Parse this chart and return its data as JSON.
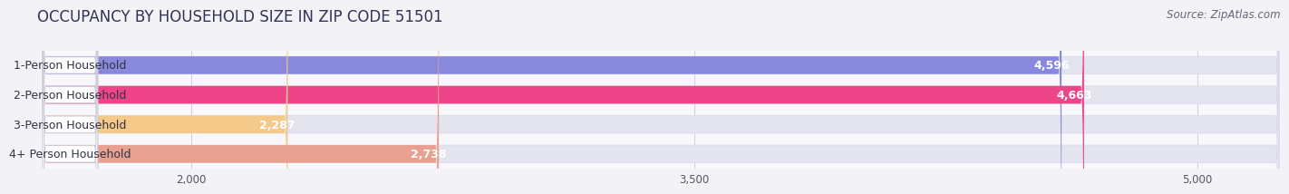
{
  "title": "OCCUPANCY BY HOUSEHOLD SIZE IN ZIP CODE 51501",
  "source": "Source: ZipAtlas.com",
  "categories": [
    "1-Person Household",
    "2-Person Household",
    "3-Person Household",
    "4+ Person Household"
  ],
  "values": [
    4596,
    4663,
    2287,
    2738
  ],
  "bar_colors": [
    "#8888dd",
    "#ee4488",
    "#f5c98a",
    "#e8a090"
  ],
  "xlim_min": 1550,
  "xlim_max": 5250,
  "xticks": [
    2000,
    3500,
    5000
  ],
  "bg_color": "#f2f2f7",
  "bar_bg_color": "#e4e4ee",
  "row_bg_color": "#f8f8fc",
  "title_fontsize": 12,
  "source_fontsize": 8.5,
  "label_fontsize": 9,
  "value_fontsize": 9,
  "tick_fontsize": 8.5
}
